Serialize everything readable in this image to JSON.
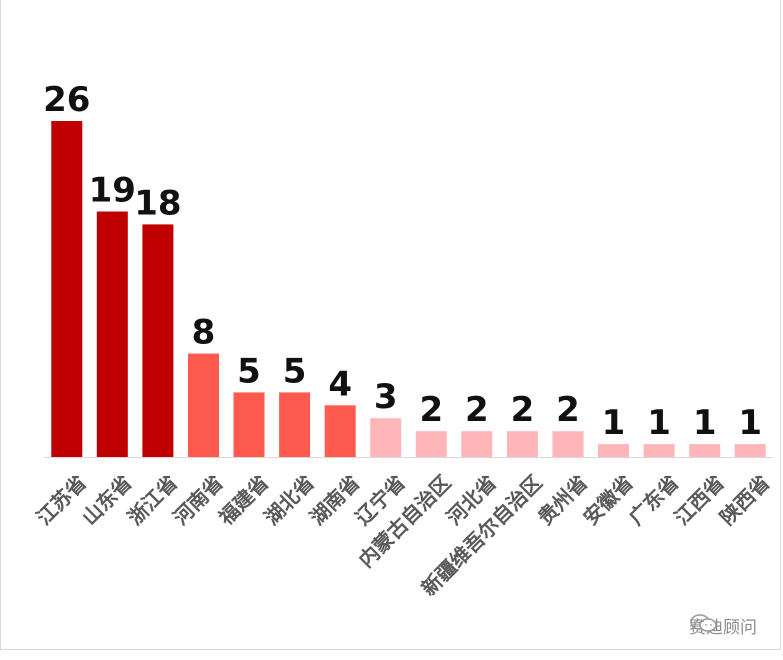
{
  "chart_data": {
    "type": "bar",
    "categories": [
      "江苏省",
      "山东省",
      "浙江省",
      "河南省",
      "福建省",
      "湖北省",
      "湖南省",
      "辽宁省",
      "内蒙古自治区",
      "河北省",
      "新疆维吾尔自治区",
      "贵州省",
      "安徽省",
      "广东省",
      "江西省",
      "陕西省"
    ],
    "values": [
      26,
      19,
      18,
      8,
      5,
      5,
      4,
      3,
      2,
      2,
      2,
      2,
      1,
      1,
      1,
      1
    ],
    "ylim": [
      0,
      26
    ],
    "grid": false,
    "legend": "none",
    "data_labels": true,
    "bar_colors": [
      "#c00000",
      "#c00000",
      "#c00000",
      "#ff5a4f",
      "#ff5a4f",
      "#ff5a4f",
      "#ff5a4f",
      "#ffb6b8",
      "#ffb6b8",
      "#ffb6b8",
      "#ffb6b8",
      "#ffb6b8",
      "#ffb6b8",
      "#ffb6b8",
      "#ffb6b8",
      "#ffb6b8"
    ]
  },
  "watermark": {
    "icon": "wechat-icon",
    "text": "赛迪顾问"
  }
}
